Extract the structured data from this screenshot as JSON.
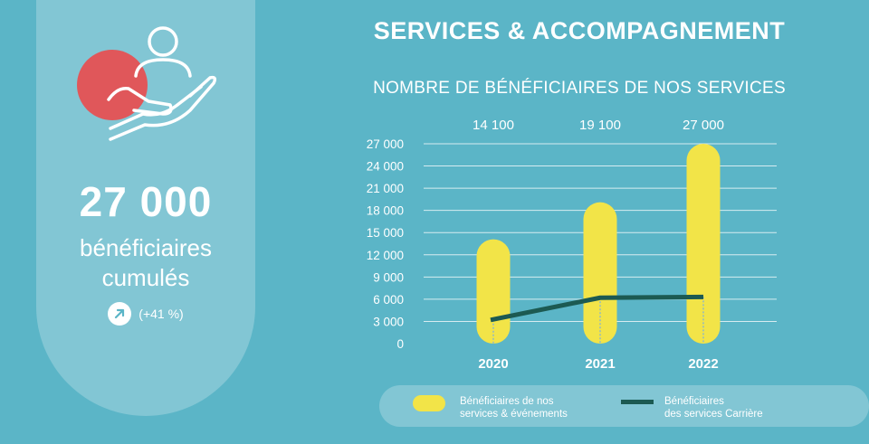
{
  "kpi": {
    "value": "27 000",
    "label": "bénéficiaires\ncumulés",
    "growth": "(+41 %)",
    "accent_color": "#e0575a"
  },
  "header": {
    "title": "SERVICES & ACCOMPAGNEMENT"
  },
  "chart_data": {
    "type": "bar",
    "title": "NOMBRE DE BÉNÉFICIAIRES DE NOS SERVICES",
    "categories": [
      "2020",
      "2021",
      "2022"
    ],
    "series": [
      {
        "name": "Bénéficiaires de nos services & événements",
        "kind": "bar",
        "color": "#f2e448",
        "values": [
          14100,
          19100,
          27000
        ]
      },
      {
        "name": "Bénéficiaires des services Carrière",
        "kind": "line",
        "color": "#1c5a52",
        "values": [
          3200,
          6200,
          6300
        ]
      }
    ],
    "bar_value_labels": [
      "14 100",
      "19 100",
      "27 000"
    ],
    "y_ticks": [
      0,
      3000,
      6000,
      9000,
      12000,
      15000,
      18000,
      21000,
      24000,
      27000
    ],
    "y_tick_labels": [
      "0",
      "3 000",
      "6 000",
      "9 000",
      "12 000",
      "15 000",
      "18 000",
      "21 000",
      "24 000",
      "27 000"
    ],
    "ylim": [
      0,
      27000
    ],
    "grid": true,
    "legend": "bottom"
  },
  "legend": {
    "bars_label": "Bénéficiaires de nos\nservices & événements",
    "line_label": "Bénéficiaires\ndes services Carrière"
  }
}
